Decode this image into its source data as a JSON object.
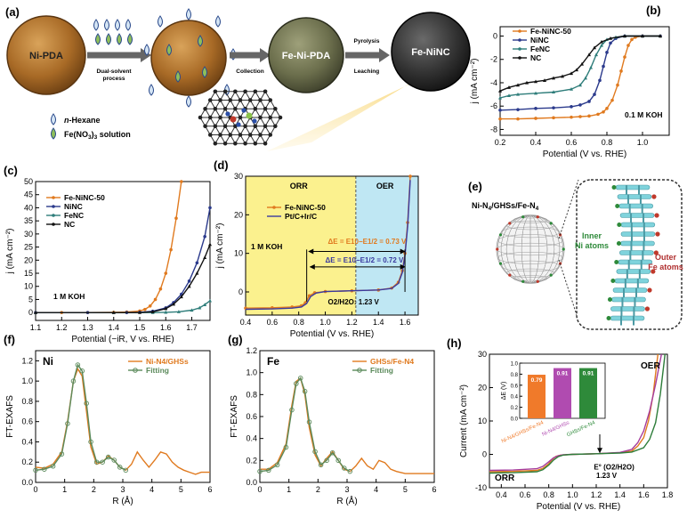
{
  "figure": {
    "panels": {
      "a": {
        "letter": "(a)",
        "sphere1": "Ni-PDA",
        "arrow1": [
          "Dual-solvent",
          "process"
        ],
        "arrow2": "Collection",
        "sphere3": "Fe-Ni-PDA",
        "arrow3": [
          "Pyrolysis",
          "Leaching"
        ],
        "sphere4": "Fe-NiNC",
        "legend": [
          {
            "label": "n-Hexane",
            "italic_prefix": "n",
            "rest": "-Hexane"
          },
          {
            "label": "Fe(NO3)3 solution",
            "main": "Fe(NO",
            "sub1": "3",
            "mid": ")",
            "sub2": "3",
            "rest": " solution"
          }
        ]
      },
      "e": {
        "letter": "(e)",
        "title": [
          "Ni-N",
          "4",
          "/GHSs/Fe-N",
          "4"
        ],
        "inner_label": [
          "Inner",
          "Ni atoms"
        ],
        "outer_label": [
          "Outer",
          "Fe atoms"
        ]
      }
    }
  },
  "chart_data": [
    {
      "id": "b",
      "type": "line",
      "letter": "(b)",
      "xlabel": "Potential (V vs. RHE)",
      "ylabel": "j (mA cm⁻²)",
      "xlim": [
        0.2,
        1.15
      ],
      "ylim": [
        -8.5,
        0.8
      ],
      "xticks": [
        "0.2",
        "0.4",
        "0.6",
        "0.8",
        "1.0"
      ],
      "yticks": [
        "-8",
        "-6",
        "-4",
        "-2",
        "0"
      ],
      "annotation": "0.1 M KOH",
      "legend": [
        "Fe-NiNC-50",
        "NiNC",
        "FeNC",
        "NC"
      ],
      "series": [
        {
          "name": "Fe-NiNC-50",
          "color": "#e07a1f",
          "x": [
            0.2,
            0.3,
            0.4,
            0.5,
            0.6,
            0.65,
            0.7,
            0.75,
            0.78,
            0.8,
            0.83,
            0.86,
            0.88,
            0.9,
            0.92,
            0.94,
            0.96,
            1.0,
            1.1
          ],
          "y": [
            -7.1,
            -7.1,
            -7.05,
            -7.0,
            -6.95,
            -6.9,
            -6.85,
            -6.7,
            -6.5,
            -6.2,
            -5.5,
            -4.2,
            -3.0,
            -1.8,
            -0.8,
            -0.3,
            -0.1,
            0,
            0
          ]
        },
        {
          "name": "NiNC",
          "color": "#2b3a8c",
          "x": [
            0.2,
            0.3,
            0.4,
            0.5,
            0.6,
            0.65,
            0.7,
            0.73,
            0.76,
            0.78,
            0.8,
            0.82,
            0.85,
            0.9,
            1.0,
            1.1
          ],
          "y": [
            -6.35,
            -6.3,
            -6.2,
            -6.15,
            -6.05,
            -5.9,
            -5.6,
            -5.0,
            -3.8,
            -2.6,
            -1.4,
            -0.6,
            -0.2,
            0,
            0,
            0
          ]
        },
        {
          "name": "FeNC",
          "color": "#2e7d7a",
          "x": [
            0.2,
            0.25,
            0.3,
            0.4,
            0.5,
            0.6,
            0.65,
            0.68,
            0.71,
            0.74,
            0.77,
            0.8,
            0.85,
            0.9,
            1.0,
            1.1
          ],
          "y": [
            -5.3,
            -5.1,
            -5.0,
            -4.9,
            -4.8,
            -4.55,
            -4.2,
            -3.6,
            -2.7,
            -1.6,
            -0.8,
            -0.3,
            -0.1,
            0,
            0,
            0
          ]
        },
        {
          "name": "NC",
          "color": "#111111",
          "x": [
            0.2,
            0.25,
            0.3,
            0.35,
            0.4,
            0.45,
            0.5,
            0.55,
            0.6,
            0.63,
            0.66,
            0.7,
            0.73,
            0.77,
            0.82,
            0.9,
            1.0,
            1.1
          ],
          "y": [
            -4.7,
            -4.4,
            -4.2,
            -4.0,
            -3.9,
            -3.8,
            -3.6,
            -3.45,
            -3.2,
            -2.9,
            -2.4,
            -1.6,
            -1.0,
            -0.5,
            -0.2,
            0,
            0,
            0
          ]
        }
      ]
    },
    {
      "id": "c",
      "type": "line",
      "letter": "(c)",
      "xlabel": "Potential (−iR, V vs. RHE)",
      "ylabel": "j (mA cm⁻²)",
      "xlim": [
        1.1,
        1.77
      ],
      "ylim": [
        -3,
        50
      ],
      "xticks": [
        "1.1",
        "1.2",
        "1.3",
        "1.4",
        "1.5",
        "1.6",
        "1.7"
      ],
      "yticks": [
        "0",
        "5",
        "10",
        "15",
        "20",
        "25",
        "30",
        "35",
        "40",
        "45",
        "50"
      ],
      "annotation": "1 M KOH",
      "legend": [
        "Fe-NiNC-50",
        "NiNC",
        "FeNC",
        "NC"
      ],
      "series": [
        {
          "name": "Fe-NiNC-50",
          "color": "#e07a1f",
          "x": [
            1.1,
            1.2,
            1.3,
            1.4,
            1.45,
            1.5,
            1.52,
            1.54,
            1.56,
            1.58,
            1.6,
            1.62,
            1.64,
            1.66
          ],
          "y": [
            0,
            0,
            0,
            0.1,
            0.2,
            0.6,
            1.2,
            2.5,
            5,
            9,
            15,
            24,
            36,
            50
          ]
        },
        {
          "name": "NiNC",
          "color": "#2b3a8c",
          "x": [
            1.1,
            1.3,
            1.45,
            1.5,
            1.55,
            1.6,
            1.63,
            1.66,
            1.69,
            1.72,
            1.75,
            1.77
          ],
          "y": [
            0,
            0,
            0,
            0.1,
            0.5,
            1.8,
            3.8,
            7,
            12,
            19,
            29,
            40
          ]
        },
        {
          "name": "FeNC",
          "color": "#2e7d7a",
          "x": [
            1.1,
            1.4,
            1.55,
            1.6,
            1.65,
            1.7,
            1.73,
            1.75,
            1.77
          ],
          "y": [
            0,
            0,
            0,
            0.1,
            0.3,
            0.9,
            1.8,
            3.0,
            4.5
          ]
        },
        {
          "name": "NC",
          "color": "#111111",
          "x": [
            1.1,
            1.4,
            1.5,
            1.55,
            1.6,
            1.63,
            1.66,
            1.69,
            1.72,
            1.75,
            1.77
          ],
          "y": [
            0,
            0,
            0,
            0.3,
            1.5,
            3.2,
            6,
            10,
            15,
            21,
            26
          ]
        }
      ]
    },
    {
      "id": "d",
      "type": "line",
      "letter": "(d)",
      "xlabel": "Potential (V vs. RHE)",
      "ylabel": "j (mA cm⁻²)",
      "xlim": [
        0.4,
        1.7
      ],
      "ylim": [
        -6,
        30
      ],
      "xticks": [
        "0.4",
        "0.6",
        "0.8",
        "1.0",
        "1.2",
        "1.4",
        "1.6"
      ],
      "yticks": [
        "0",
        "10",
        "20",
        "30"
      ],
      "region_left": "ORR",
      "region_right": "OER",
      "annotation": "1 M KOH",
      "delta1": "ΔE = E10−E1/2 = 0.73 V",
      "delta2": "ΔE = E10−E1/2 = 0.72 V",
      "equilibrium": "O2/H2O: 1.23 V",
      "legend": [
        "Fe-NiNC-50",
        "Pt/C+Ir/C"
      ],
      "series": [
        {
          "name": "Fe-NiNC-50",
          "color": "#e07a1f",
          "x": [
            0.4,
            0.6,
            0.75,
            0.82,
            0.85,
            0.88,
            0.92,
            1.0,
            1.2,
            1.4,
            1.5,
            1.55,
            1.58,
            1.6,
            1.62,
            1.64
          ],
          "y": [
            -4.2,
            -4.1,
            -3.9,
            -3.6,
            -2.8,
            -1.0,
            -0.2,
            0.1,
            0.3,
            0.5,
            1.0,
            2.5,
            5.5,
            10,
            18,
            30
          ]
        },
        {
          "name": "Pt/C+Ir/C",
          "color": "#3a3aa0",
          "x": [
            0.4,
            0.6,
            0.75,
            0.82,
            0.86,
            0.89,
            0.93,
            1.0,
            1.2,
            1.4,
            1.5,
            1.55,
            1.58,
            1.6,
            1.62,
            1.64
          ],
          "y": [
            -4.5,
            -4.4,
            -4.2,
            -3.9,
            -3.0,
            -1.2,
            -0.3,
            0.1,
            0.3,
            0.5,
            0.9,
            2.2,
            5.0,
            9.5,
            17,
            29
          ]
        }
      ]
    },
    {
      "id": "f",
      "type": "line",
      "letter": "(f)",
      "tag": "Ni",
      "xlabel": "R (Å)",
      "ylabel": "FT-EXAFS",
      "xlim": [
        0,
        6
      ],
      "ylim": [
        0,
        1.3
      ],
      "xticks": [
        "0",
        "1",
        "2",
        "3",
        "4",
        "5",
        "6"
      ],
      "yticks": [
        "0.0",
        "0.2",
        "0.4",
        "0.6",
        "0.8",
        "1.0",
        "1.2"
      ],
      "legend": [
        "Ni-N4/GHSs",
        "Fitting"
      ],
      "series": [
        {
          "name": "Ni-N4/GHSs",
          "color": "#e07a1f",
          "x": [
            0,
            0.3,
            0.6,
            0.9,
            1.1,
            1.3,
            1.45,
            1.6,
            1.75,
            1.9,
            2.1,
            2.3,
            2.5,
            2.7,
            2.9,
            3.1,
            3.3,
            3.5,
            3.7,
            3.9,
            4.1,
            4.3,
            4.5,
            4.7,
            4.9,
            5.1,
            5.3,
            5.5,
            5.7,
            6.0
          ],
          "y": [
            0.15,
            0.14,
            0.18,
            0.3,
            0.6,
            1.0,
            1.12,
            1.05,
            0.7,
            0.35,
            0.18,
            0.2,
            0.26,
            0.22,
            0.15,
            0.12,
            0.18,
            0.3,
            0.22,
            0.15,
            0.22,
            0.3,
            0.28,
            0.2,
            0.15,
            0.12,
            0.1,
            0.08,
            0.1,
            0.1
          ]
        },
        {
          "name": "Fitting",
          "color": "#5b8a5b",
          "x": [
            0,
            0.3,
            0.6,
            0.9,
            1.1,
            1.3,
            1.45,
            1.6,
            1.75,
            1.9,
            2.1,
            2.3,
            2.5,
            2.7,
            2.9,
            3.1
          ],
          "y": [
            0.12,
            0.13,
            0.16,
            0.28,
            0.58,
            1.0,
            1.16,
            1.1,
            0.78,
            0.4,
            0.2,
            0.2,
            0.25,
            0.22,
            0.15,
            0.12
          ]
        }
      ]
    },
    {
      "id": "g",
      "type": "line",
      "letter": "(g)",
      "tag": "Fe",
      "xlabel": "R (Å)",
      "ylabel": "FT-EXAFS",
      "xlim": [
        0,
        6
      ],
      "ylim": [
        0,
        1.2
      ],
      "xticks": [
        "0",
        "1",
        "2",
        "3",
        "4",
        "5",
        "6"
      ],
      "yticks": [
        "0.0",
        "0.2",
        "0.4",
        "0.6",
        "0.8",
        "1.0",
        "1.2"
      ],
      "legend": [
        "GHSs/Fe-N4",
        "Fitting"
      ],
      "series": [
        {
          "name": "GHSs/Fe-N4",
          "color": "#e07a1f",
          "x": [
            0,
            0.3,
            0.6,
            0.9,
            1.1,
            1.25,
            1.4,
            1.55,
            1.7,
            1.9,
            2.1,
            2.3,
            2.5,
            2.7,
            2.9,
            3.1,
            3.3,
            3.5,
            3.7,
            3.9,
            4.1,
            4.3,
            4.5,
            4.7,
            5.0,
            5.5,
            6.0
          ],
          "y": [
            0.12,
            0.12,
            0.18,
            0.35,
            0.7,
            0.92,
            0.95,
            0.8,
            0.5,
            0.25,
            0.15,
            0.22,
            0.28,
            0.2,
            0.12,
            0.1,
            0.15,
            0.22,
            0.15,
            0.12,
            0.2,
            0.18,
            0.12,
            0.1,
            0.08,
            0.08,
            0.08
          ]
        },
        {
          "name": "Fitting",
          "color": "#5b8a5b",
          "x": [
            0,
            0.3,
            0.6,
            0.9,
            1.1,
            1.25,
            1.4,
            1.55,
            1.7,
            1.9,
            2.1,
            2.3,
            2.5,
            2.7,
            2.9,
            3.1
          ],
          "y": [
            0.1,
            0.11,
            0.16,
            0.32,
            0.66,
            0.9,
            0.95,
            0.83,
            0.55,
            0.28,
            0.16,
            0.2,
            0.27,
            0.2,
            0.13,
            0.1
          ]
        }
      ]
    },
    {
      "id": "h",
      "type": "line",
      "letter": "(h)",
      "xlabel": "Potential (V vs. RHE)",
      "ylabel": "Current (mA cm⁻²)",
      "xlim": [
        0.3,
        1.8
      ],
      "ylim": [
        -10,
        30
      ],
      "xticks": [
        "0.4",
        "0.6",
        "0.8",
        "1.0",
        "1.2",
        "1.4",
        "1.6",
        "1.8"
      ],
      "yticks": [
        "-10",
        "0",
        "10",
        "20",
        "30"
      ],
      "region_left": "ORR",
      "region_right": "OER",
      "equilibrium": [
        "E° (O2/H2O)",
        "1.23 V"
      ],
      "series": [
        {
          "name": "Ni-N4/GHSs/Fe-N4",
          "color": "#e07a1f",
          "x": [
            0.3,
            0.5,
            0.7,
            0.75,
            0.8,
            0.83,
            0.86,
            0.9,
            1.0,
            1.2,
            1.4,
            1.5,
            1.55,
            1.6,
            1.64,
            1.68,
            1.72
          ],
          "y": [
            -5.2,
            -5.1,
            -4.8,
            -4.2,
            -2.8,
            -1.5,
            -0.6,
            -0.2,
            0,
            0.2,
            0.5,
            1.0,
            2.5,
            5,
            10,
            18,
            30
          ]
        },
        {
          "name": "Ni-N4/GHSs",
          "color": "#a53c9c",
          "x": [
            0.3,
            0.5,
            0.7,
            0.75,
            0.8,
            0.84,
            0.88,
            0.92,
            1.0,
            1.2,
            1.4,
            1.5,
            1.55,
            1.6,
            1.65,
            1.7,
            1.75
          ],
          "y": [
            -4.8,
            -4.7,
            -4.3,
            -3.6,
            -2.2,
            -1.0,
            -0.4,
            -0.1,
            0,
            0.2,
            0.6,
            1.5,
            3.5,
            7,
            13,
            21,
            30
          ]
        },
        {
          "name": "GHSs/Fe-N4",
          "color": "#2e7d3a",
          "x": [
            0.3,
            0.5,
            0.7,
            0.75,
            0.8,
            0.84,
            0.88,
            0.92,
            1.0,
            1.2,
            1.4,
            1.5,
            1.6,
            1.65,
            1.7,
            1.74,
            1.78
          ],
          "y": [
            -5.6,
            -5.5,
            -5.2,
            -4.6,
            -3.2,
            -1.7,
            -0.7,
            -0.2,
            0,
            0.2,
            0.4,
            0.7,
            2.0,
            4.5,
            9.5,
            18,
            30
          ]
        }
      ],
      "inset": {
        "type": "bar",
        "ylabel": "ΔE (V)",
        "ylim": [
          0,
          1
        ],
        "yticks": [
          "0.0",
          "0.2",
          "0.4",
          "0.6",
          "0.8",
          "1.0"
        ],
        "categories": [
          "Ni-N4/GHSs/Fe-N4",
          "Ni-N4/GHSs",
          "GHSs/Fe-N4"
        ],
        "values": [
          0.79,
          0.91,
          0.91
        ],
        "labels": [
          "0.79",
          "0.91",
          "0.91"
        ],
        "colors": [
          "#f07a2a",
          "#b04bb0",
          "#2e8a3a"
        ]
      }
    }
  ]
}
